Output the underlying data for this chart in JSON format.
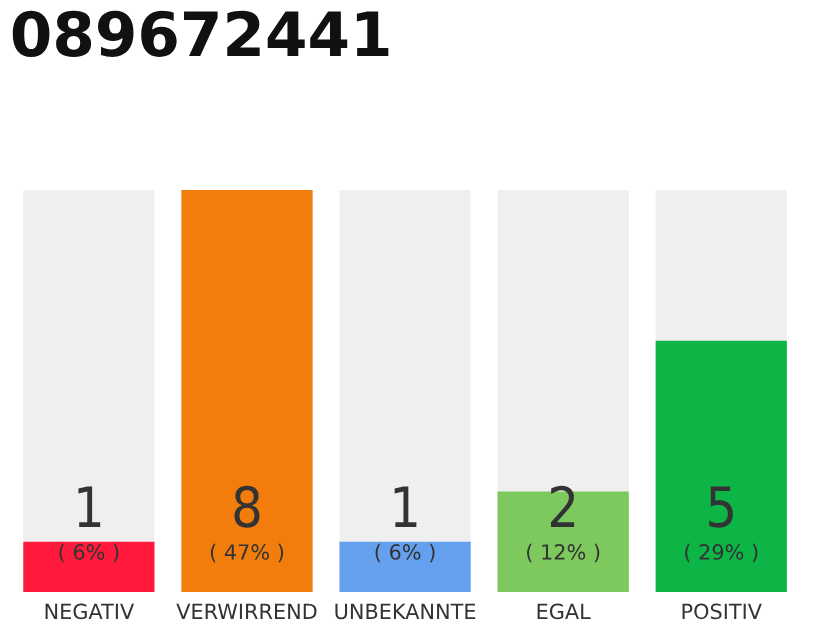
{
  "chart_data": {
    "type": "bar",
    "title": "089672441",
    "categories": [
      "NEGATIV",
      "VERWIRREND",
      "UNBEKANNTE",
      "EGAL",
      "POSITIV"
    ],
    "values": [
      1,
      8,
      1,
      2,
      5
    ],
    "colors": [
      "#ff1a3c",
      "#f27d0d",
      "#64a0ee",
      "#7ec95e",
      "#0db446"
    ],
    "data_labels": true,
    "annotations": [
      "( 6% )",
      "( 47% )",
      "( 6% )",
      "( 12% )",
      "( 29% )"
    ],
    "grid": false
  }
}
